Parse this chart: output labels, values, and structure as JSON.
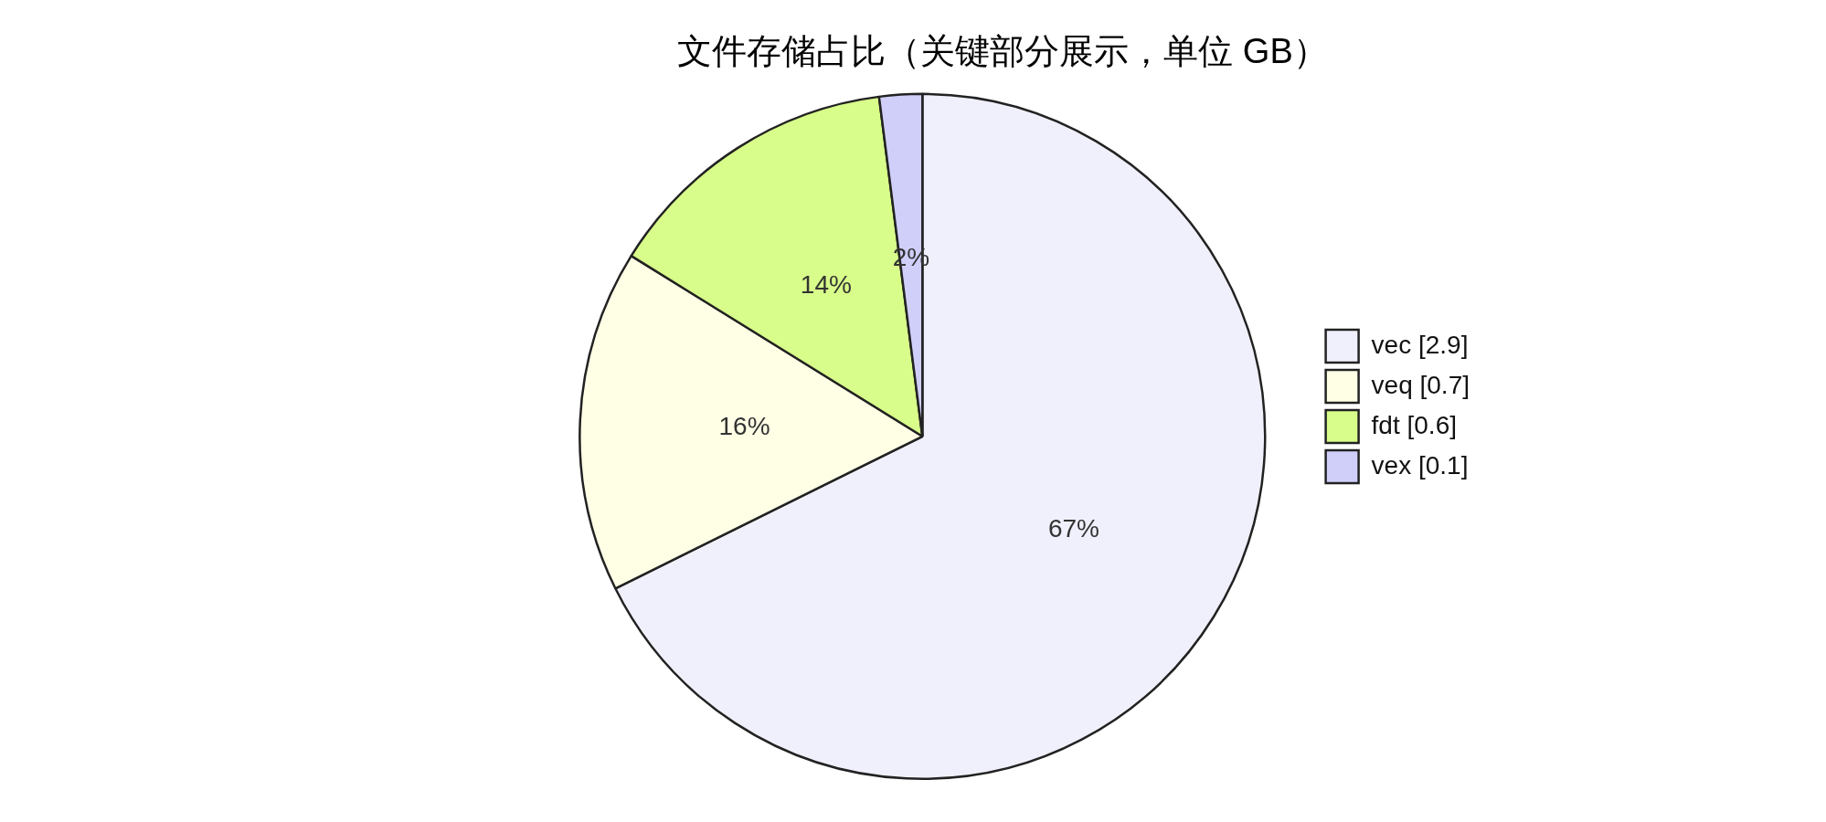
{
  "chart_data": {
    "type": "pie",
    "title": "文件存储占比（关键部分展示，单位 GB）",
    "categories": [
      "vec [2.9]",
      "veq [0.7]",
      "fdt [0.6]",
      "vex [0.1]"
    ],
    "values": [
      67,
      16,
      14,
      2
    ],
    "colors": [
      "#f0f0fc",
      "#ffffe6",
      "#d8fd8a",
      "#cfcffa"
    ],
    "value_labels": [
      "67%",
      "16%",
      "14%",
      "2%"
    ],
    "legend": "right"
  }
}
